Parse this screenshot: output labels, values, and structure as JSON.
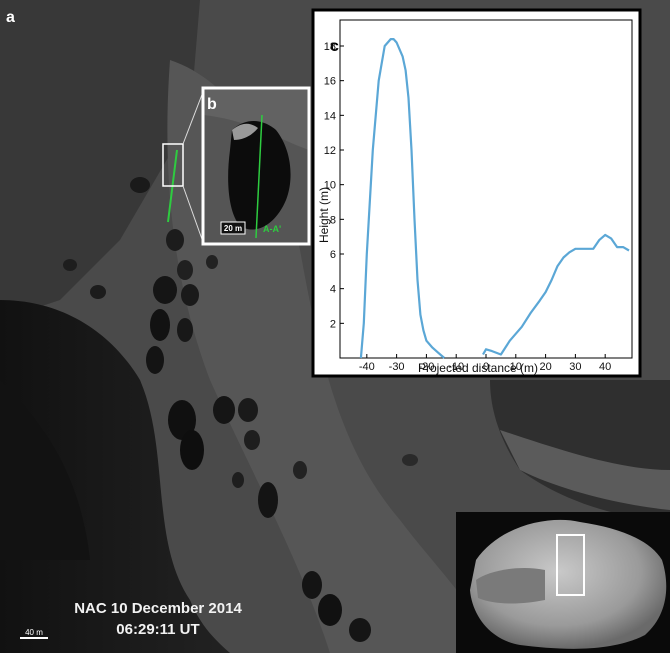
{
  "figure": {
    "panel_a": "a",
    "panel_b": "b",
    "panel_c": "c",
    "caption_line1": "NAC 10 December 2014",
    "caption_line2": "06:29:11 UT",
    "scale_bar_main": "40 m",
    "scale_bar_inset": "20 m",
    "profile_label": "A-A'"
  },
  "colors": {
    "profile_line": "#5ba7d6",
    "section_line": "#2ecc40",
    "inset_frame": "#ffffff"
  },
  "chart_data": {
    "type": "line",
    "title": "",
    "xlabel": "Projected  distance (m)",
    "ylabel": "Height (m)",
    "xlim": [
      -49,
      49
    ],
    "ylim": [
      0,
      19.5
    ],
    "xticks": [
      -40,
      -30,
      -20,
      -10,
      0,
      10,
      20,
      30,
      40
    ],
    "yticks": [
      2,
      4,
      6,
      8,
      10,
      12,
      14,
      16,
      18
    ],
    "series": [
      {
        "values": [
          [
            [
              -42,
              0
            ],
            [
              -41,
              2
            ],
            [
              -40,
              6
            ],
            [
              -38,
              12
            ],
            [
              -36,
              16
            ],
            [
              -34,
              18
            ],
            [
              -32,
              18.4
            ],
            [
              -31,
              18.4
            ],
            [
              -30,
              18.2
            ],
            [
              -28,
              17.4
            ],
            [
              -27,
              16.6
            ],
            [
              -26,
              15
            ],
            [
              -25,
              12
            ],
            [
              -24,
              8
            ],
            [
              -23,
              4.5
            ],
            [
              -22,
              2.5
            ],
            [
              -21,
              1.6
            ],
            [
              -20,
              1
            ],
            [
              -18,
              0.6
            ],
            [
              -16,
              0.3
            ],
            [
              -14,
              0
            ]
          ],
          [
            [
              -1,
              0.2
            ],
            [
              0,
              0.5
            ],
            [
              2,
              0.4
            ],
            [
              5,
              0.2
            ],
            [
              8,
              1
            ],
            [
              12,
              1.8
            ],
            [
              15,
              2.6
            ],
            [
              18,
              3.3
            ],
            [
              20,
              3.8
            ],
            [
              22,
              4.5
            ],
            [
              24,
              5.3
            ],
            [
              26,
              5.8
            ],
            [
              28,
              6.1
            ],
            [
              30,
              6.3
            ],
            [
              33,
              6.3
            ],
            [
              36,
              6.3
            ],
            [
              38,
              6.8
            ],
            [
              40,
              7.1
            ],
            [
              42,
              6.9
            ],
            [
              44,
              6.4
            ],
            [
              46,
              6.4
            ],
            [
              48,
              6.2
            ]
          ]
        ]
      }
    ]
  }
}
